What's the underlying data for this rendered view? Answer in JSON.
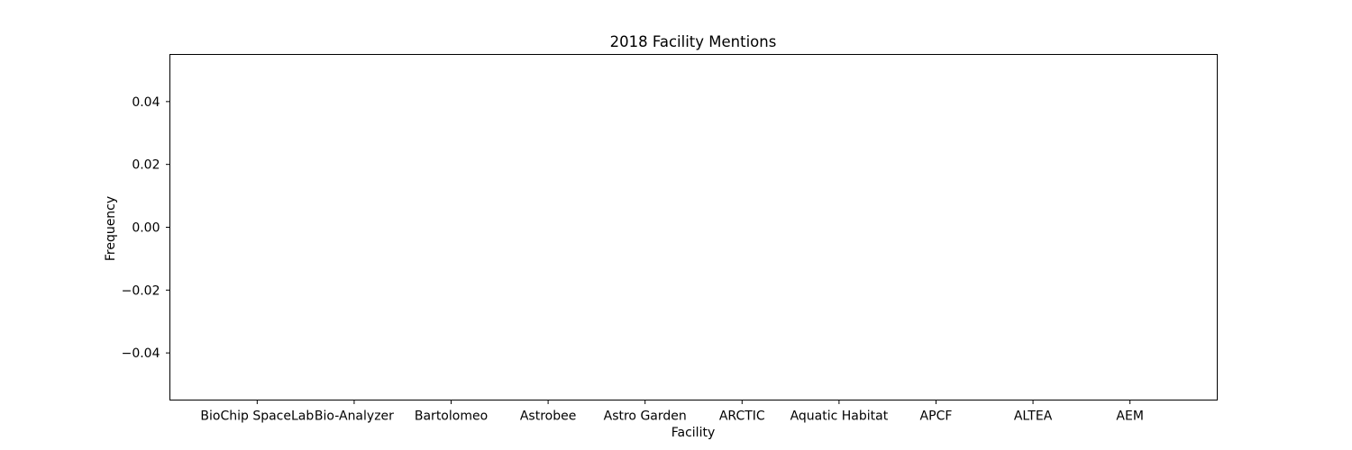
{
  "chart_data": {
    "type": "bar",
    "title": "2018 Facility Mentions",
    "xlabel": "Facility",
    "ylabel": "Frequency",
    "categories": [
      "BioChip SpaceLab",
      "Bio-Analyzer",
      "Bartolomeo",
      "Astrobee",
      "Astro Garden",
      "ARCTIC",
      "Aquatic Habitat",
      "APCF",
      "ALTEA",
      "AEM"
    ],
    "values": [
      0,
      0,
      0,
      0,
      0,
      0,
      0,
      0,
      0,
      0
    ],
    "ylim": [
      -0.055,
      0.055
    ],
    "yticks": [
      -0.04,
      -0.02,
      0.0,
      0.02,
      0.04
    ],
    "ytick_labels": [
      "−0.04",
      "−0.02",
      "0.00",
      "0.02",
      "0.04"
    ],
    "grid": false,
    "colors": {
      "bar": "#1f77b4",
      "axes": "#000000",
      "background": "#ffffff"
    }
  }
}
